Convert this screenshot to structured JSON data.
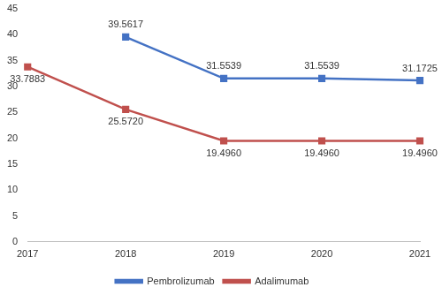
{
  "chart_data": {
    "type": "line",
    "categories": [
      "2017",
      "2018",
      "2019",
      "2020",
      "2021"
    ],
    "series": [
      {
        "name": "Pembrolizumab",
        "color": "#4472c4",
        "marker": "square",
        "values": [
          null,
          39.5617,
          31.5539,
          31.5539,
          31.1725
        ],
        "value_labels": [
          null,
          "39.5617",
          "31.5539",
          "31.5539",
          "31.1725"
        ]
      },
      {
        "name": "Adalimumab",
        "color": "#c0504d",
        "marker": "square",
        "values": [
          33.7883,
          25.572,
          19.496,
          19.496,
          19.496
        ],
        "value_labels": [
          "33.7883",
          "25.5720",
          "19.4960",
          "19.4960",
          "19.4960"
        ]
      }
    ],
    "ylim": [
      0,
      45
    ],
    "yticks": [
      0,
      5,
      10,
      15,
      20,
      25,
      30,
      35,
      40,
      45
    ],
    "grid": false,
    "legend": "bottom",
    "data_labels": true
  }
}
